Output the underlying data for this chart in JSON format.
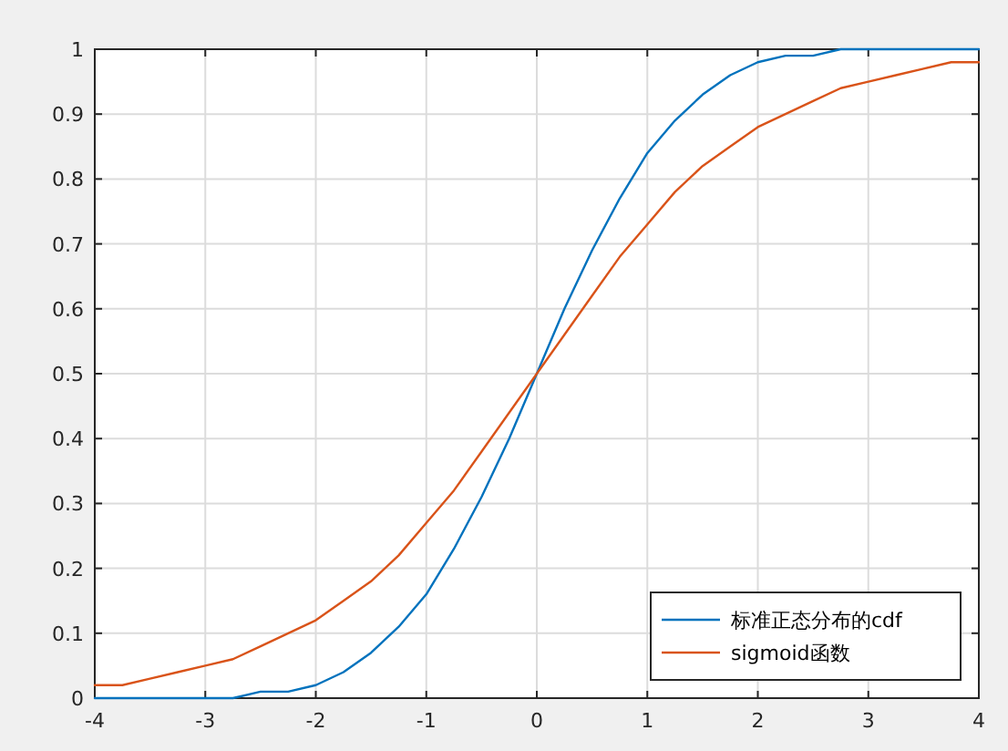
{
  "chart_data": {
    "type": "line",
    "x": [
      -4,
      -3.75,
      -3.5,
      -3.25,
      -3,
      -2.75,
      -2.5,
      -2.25,
      -2,
      -1.75,
      -1.5,
      -1.25,
      -1,
      -0.75,
      -0.5,
      -0.25,
      0,
      0.25,
      0.5,
      0.75,
      1,
      1.25,
      1.5,
      1.75,
      2,
      2.25,
      2.5,
      2.75,
      3,
      3.25,
      3.5,
      3.75,
      4
    ],
    "series": [
      {
        "name": "标准正态分布的cdf",
        "color": "#0072bd",
        "values": [
          0,
          0,
          0,
          0,
          0,
          0,
          0.01,
          0.01,
          0.02,
          0.04,
          0.07,
          0.11,
          0.16,
          0.23,
          0.31,
          0.4,
          0.5,
          0.6,
          0.69,
          0.77,
          0.84,
          0.89,
          0.93,
          0.96,
          0.98,
          0.99,
          0.99,
          1,
          1,
          1,
          1,
          1,
          1
        ]
      },
      {
        "name": "sigmoid函数",
        "color": "#d95319",
        "values": [
          0.02,
          0.02,
          0.03,
          0.04,
          0.05,
          0.06,
          0.08,
          0.1,
          0.12,
          0.15,
          0.18,
          0.22,
          0.27,
          0.32,
          0.38,
          0.44,
          0.5,
          0.56,
          0.62,
          0.68,
          0.73,
          0.78,
          0.82,
          0.85,
          0.88,
          0.9,
          0.92,
          0.94,
          0.95,
          0.96,
          0.97,
          0.98,
          0.98
        ]
      }
    ],
    "xlim": [
      -4,
      4
    ],
    "ylim": [
      0,
      1
    ],
    "xticks": [
      -4,
      -3,
      -2,
      -1,
      0,
      1,
      2,
      3,
      4
    ],
    "yticks": [
      0,
      0.1,
      0.2,
      0.3,
      0.4,
      0.5,
      0.6,
      0.7,
      0.8,
      0.9,
      1
    ],
    "grid": true,
    "legend": "bottom right"
  }
}
